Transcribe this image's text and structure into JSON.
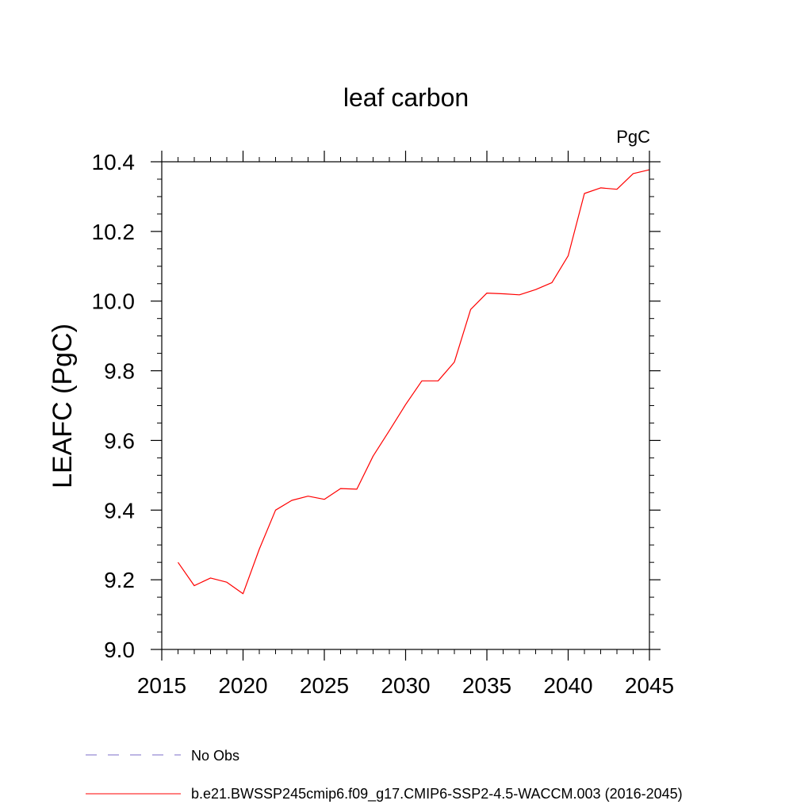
{
  "chart_data": {
    "type": "line",
    "title": "leaf carbon",
    "units_label": "PgC",
    "ylabel": "LEAFC  (PgC)",
    "xlabel": "",
    "xlim": [
      2015,
      2045
    ],
    "ylim": [
      9.0,
      10.4
    ],
    "x_ticks": [
      2015,
      2020,
      2025,
      2030,
      2035,
      2040,
      2045
    ],
    "x_tick_labels": [
      "2015",
      "2020",
      "2025",
      "2030",
      "2035",
      "2040",
      "2045"
    ],
    "y_ticks": [
      9.0,
      9.2,
      9.4,
      9.6,
      9.8,
      10.0,
      10.2,
      10.4
    ],
    "y_tick_labels": [
      "9.0",
      "9.2",
      "9.4",
      "9.6",
      "9.8",
      "10.0",
      "10.2",
      "10.4"
    ],
    "grid": false,
    "legend_position": "bottom",
    "series": [
      {
        "name": "b.e21.BWSSP245cmip6.f09_g17.CMIP6-SSP2-4.5-WACCM.003 (2016-2045)",
        "color": "#ff0000",
        "style": "solid",
        "x": [
          2016,
          2017,
          2018,
          2019,
          2020,
          2021,
          2022,
          2023,
          2024,
          2025,
          2026,
          2027,
          2028,
          2029,
          2030,
          2031,
          2032,
          2033,
          2034,
          2035,
          2036,
          2037,
          2038,
          2039,
          2040,
          2041,
          2042,
          2043,
          2044,
          2045
        ],
        "y": [
          9.25,
          9.183,
          9.205,
          9.193,
          9.16,
          9.288,
          9.4,
          9.428,
          9.44,
          9.431,
          9.462,
          9.46,
          9.555,
          9.628,
          9.703,
          9.771,
          9.771,
          9.825,
          9.976,
          10.023,
          10.021,
          10.018,
          10.033,
          10.053,
          10.13,
          10.309,
          10.325,
          10.321,
          10.366,
          10.377
        ]
      }
    ],
    "legend": [
      {
        "label": "No Obs",
        "color": "#7b6cc9",
        "style": "dashed"
      },
      {
        "label": "b.e21.BWSSP245cmip6.f09_g17.CMIP6-SSP2-4.5-WACCM.003 (2016-2045)",
        "color": "#ff0000",
        "style": "solid"
      }
    ]
  }
}
